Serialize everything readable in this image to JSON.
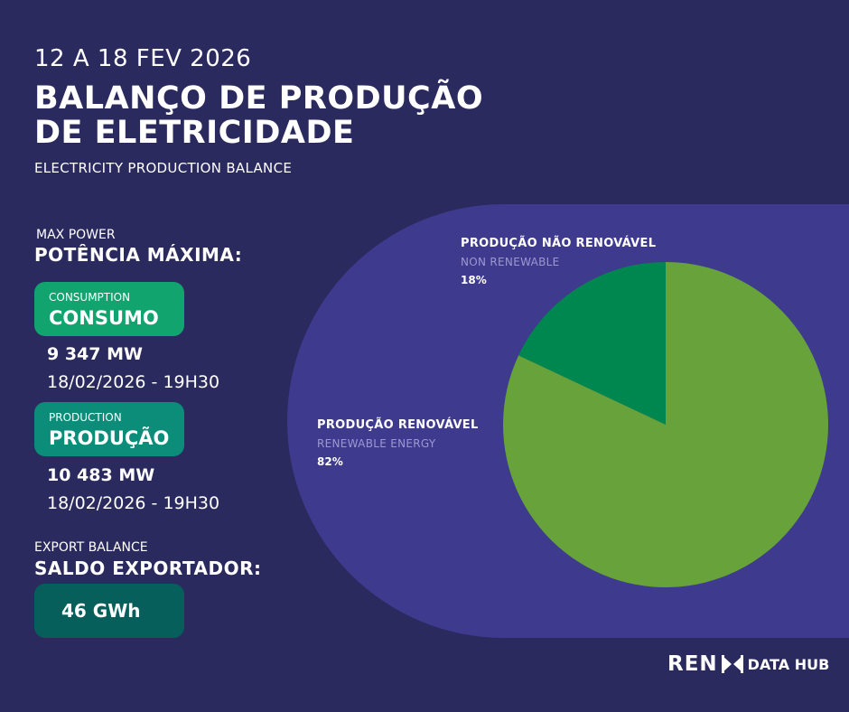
{
  "header": {
    "date_range": "12 A 18 FEV 2026",
    "title_line1": "BALANÇO DE PRODUÇÃO",
    "title_line2": "DE ELETRICIDADE",
    "subtitle": "ELECTRICITY PRODUCTION BALANCE"
  },
  "max_power": {
    "caption": "MAX POWER",
    "title": "POTÊNCIA MÁXIMA:"
  },
  "consumption": {
    "caption": "CONSUMPTION",
    "label": "CONSUMO",
    "value": "9 347 MW",
    "datetime": "18/02/2026 - 19H30"
  },
  "production": {
    "caption": "PRODUCTION",
    "label": "PRODUÇÃO",
    "value": "10 483 MW",
    "datetime": "18/02/2026 - 19H30"
  },
  "export_balance": {
    "caption": "EXPORT BALANCE",
    "title": "SALDO EXPORTADOR:",
    "value": "46 GWh"
  },
  "chart_data": {
    "type": "pie",
    "slices": [
      {
        "label": "PRODUÇÃO NÃO RENOVÁVEL",
        "sublabel": "NON RENEWABLE",
        "value": 18,
        "display": "18%",
        "color": "#00874f"
      },
      {
        "label": "PRODUÇÃO RENOVÁVEL",
        "sublabel": "RENEWABLE ENERGY",
        "value": 82,
        "display": "82%",
        "color": "#67a33a"
      }
    ]
  },
  "logo": {
    "brand": "REN",
    "suffix": "DATA HUB"
  }
}
